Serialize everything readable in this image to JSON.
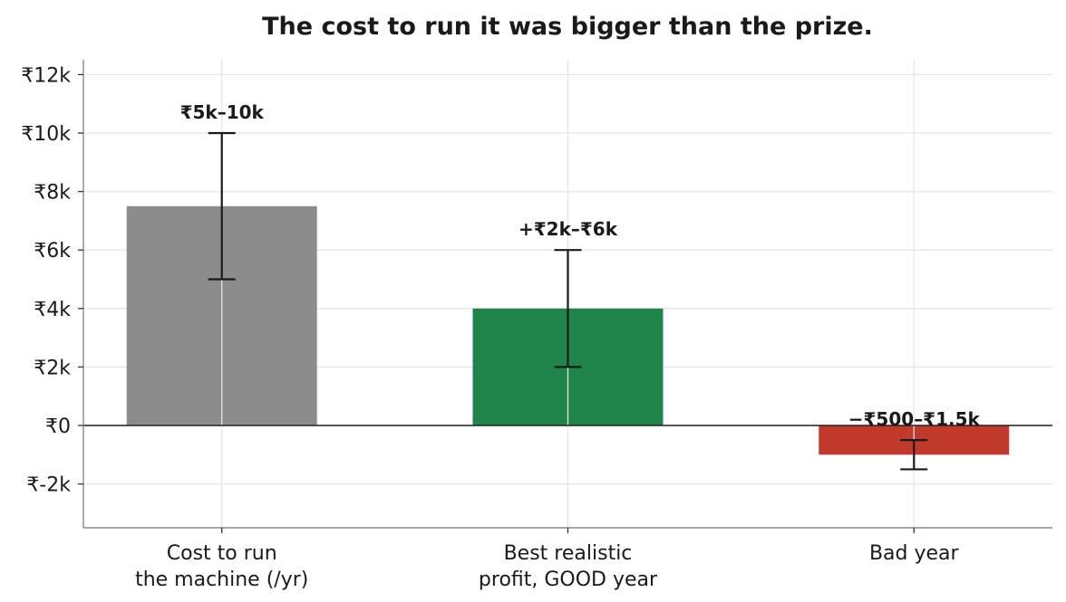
{
  "chart_data": {
    "type": "bar",
    "title": "The cost to run it was bigger than the prize.",
    "categories": [
      [
        "Cost to run",
        "the machine (/yr)"
      ],
      [
        "Best realistic",
        "profit, GOOD year"
      ],
      [
        "Bad year"
      ]
    ],
    "values": [
      7500,
      4000,
      -1000
    ],
    "error_ranges": [
      [
        5000,
        10000
      ],
      [
        2000,
        6000
      ],
      [
        -1500,
        -500
      ]
    ],
    "data_labels": [
      "₹5k–10k",
      "+₹2k–₹6k",
      "−₹500–₹1.5k"
    ],
    "colors": [
      "#8c8c8c",
      "#20854b",
      "#c0392b"
    ],
    "ylim": [
      -3500,
      12500
    ],
    "yticks": [
      -2000,
      0,
      2000,
      4000,
      6000,
      8000,
      10000,
      12000
    ],
    "ytick_labels": [
      "₹-2k",
      "₹0",
      "₹2k",
      "₹4k",
      "₹6k",
      "₹8k",
      "₹10k",
      "₹12k"
    ],
    "xlabel": "",
    "ylabel": "",
    "grid": true,
    "zero_line": true
  }
}
